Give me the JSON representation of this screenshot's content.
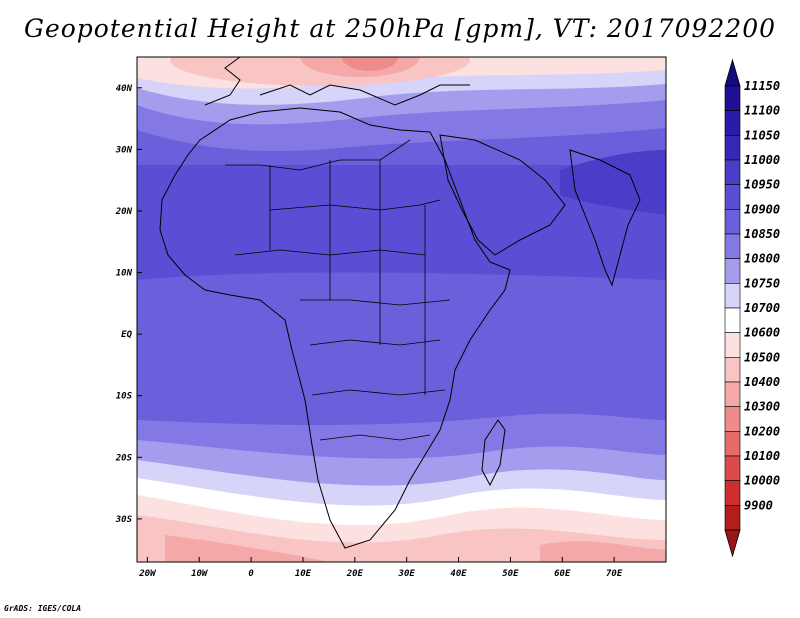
{
  "title": "Geopotential Height at 250hPa [gpm], VT: 2017092200",
  "credit": "GrADS: IGES/COLA",
  "map": {
    "lon_range": [
      -22,
      80
    ],
    "lat_range": [
      -37,
      45
    ],
    "lon_ticks": [
      {
        "value": -20,
        "label": "20W"
      },
      {
        "value": -10,
        "label": "10W"
      },
      {
        "value": 0,
        "label": "0"
      },
      {
        "value": 10,
        "label": "10E"
      },
      {
        "value": 20,
        "label": "20E"
      },
      {
        "value": 30,
        "label": "30E"
      },
      {
        "value": 40,
        "label": "40E"
      },
      {
        "value": 50,
        "label": "50E"
      },
      {
        "value": 60,
        "label": "60E"
      },
      {
        "value": 70,
        "label": "70E"
      }
    ],
    "lat_ticks": [
      {
        "value": 40,
        "label": "40N"
      },
      {
        "value": 30,
        "label": "30N"
      },
      {
        "value": 20,
        "label": "20N"
      },
      {
        "value": 10,
        "label": "10N"
      },
      {
        "value": 0,
        "label": "EQ"
      },
      {
        "value": -10,
        "label": "10S"
      },
      {
        "value": -20,
        "label": "20S"
      },
      {
        "value": -30,
        "label": "30S"
      }
    ]
  },
  "colorbar": {
    "levels": [
      {
        "label": "11150",
        "color": "#1e0f96"
      },
      {
        "label": "11100",
        "color": "#2a1ca6"
      },
      {
        "label": "11050",
        "color": "#3628b4"
      },
      {
        "label": "11000",
        "color": "#4a3dc8"
      },
      {
        "label": "10950",
        "color": "#5a4fd4"
      },
      {
        "label": "10900",
        "color": "#6a60dc"
      },
      {
        "label": "10850",
        "color": "#8479e4"
      },
      {
        "label": "10800",
        "color": "#a49dee"
      },
      {
        "label": "10750",
        "color": "#d6d4f8"
      },
      {
        "label": "10700",
        "color": "#ffffff"
      },
      {
        "label": "10600",
        "color": "#fde1e1"
      },
      {
        "label": "10500",
        "color": "#f9c4c4"
      },
      {
        "label": "10400",
        "color": "#f4a8a8"
      },
      {
        "label": "10300",
        "color": "#ee8c8c"
      },
      {
        "label": "10200",
        "color": "#e66a6a"
      },
      {
        "label": "10100",
        "color": "#dd4a4a"
      },
      {
        "label": "10000",
        "color": "#d02e2e"
      },
      {
        "label": "9900",
        "color": "#b51c1c"
      }
    ],
    "top_arrow_color": "#150a80",
    "bottom_arrow_color": "#9c1414"
  }
}
